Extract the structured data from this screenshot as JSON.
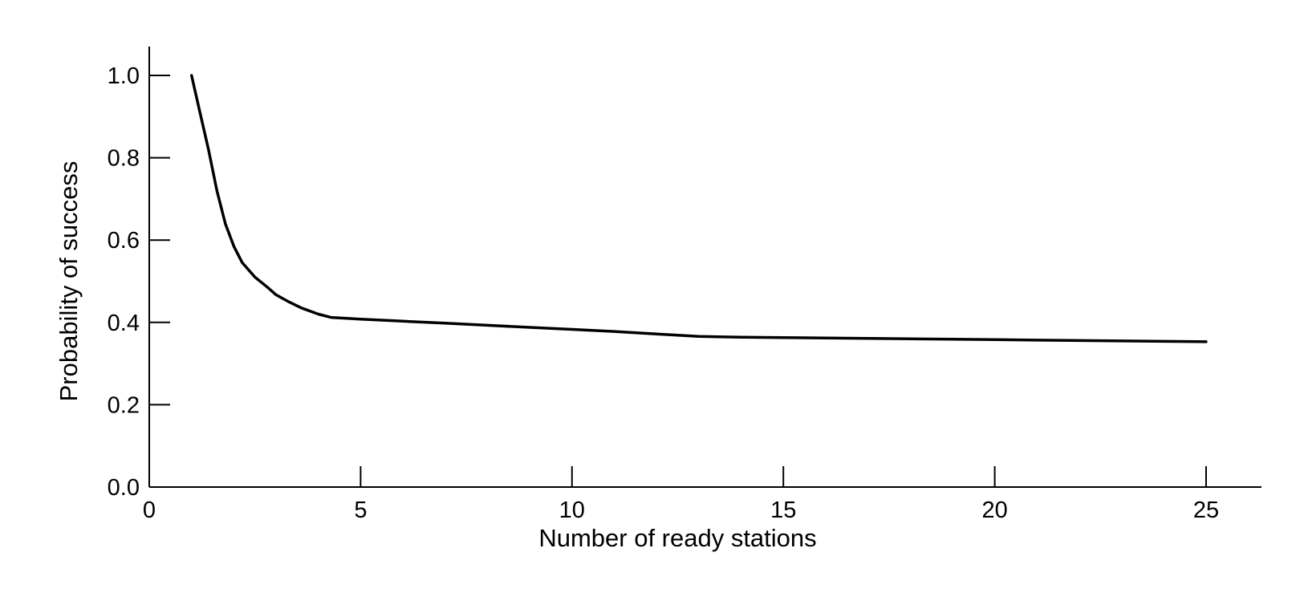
{
  "chart_data": {
    "type": "line",
    "title": "",
    "xlabel": "Number of ready stations",
    "ylabel": "Probability of success",
    "xlim": [
      0,
      26.2
    ],
    "ylim": [
      0,
      1.07
    ],
    "xticks": [
      0,
      5,
      10,
      15,
      20,
      25
    ],
    "xtick_labels": [
      "0",
      "5",
      "10",
      "15",
      "20",
      "25"
    ],
    "yticks": [
      0.0,
      0.2,
      0.4,
      0.6,
      0.8,
      1.0
    ],
    "ytick_labels": [
      "0.0",
      "0.2",
      "0.4",
      "0.6",
      "0.8",
      "1.0"
    ],
    "grid": false,
    "legend": "none",
    "line_color": "#000000",
    "series": [
      {
        "x": [
          1,
          1.2,
          1.4,
          1.6,
          1.8,
          2,
          2.2,
          2.5,
          2.8,
          3,
          3.3,
          3.6,
          4,
          4.3,
          5,
          6,
          7,
          8,
          9,
          10,
          11,
          12,
          13,
          14,
          15,
          16,
          17,
          18,
          19,
          20,
          21,
          22,
          23,
          24,
          25
        ],
        "y": [
          1.0,
          0.91,
          0.82,
          0.72,
          0.64,
          0.585,
          0.545,
          0.51,
          0.485,
          0.467,
          0.45,
          0.435,
          0.42,
          0.412,
          0.408,
          0.403,
          0.398,
          0.393,
          0.388,
          0.383,
          0.378,
          0.372,
          0.366,
          0.364,
          0.363,
          0.362,
          0.361,
          0.36,
          0.359,
          0.358,
          0.357,
          0.356,
          0.355,
          0.354,
          0.353
        ]
      }
    ]
  }
}
